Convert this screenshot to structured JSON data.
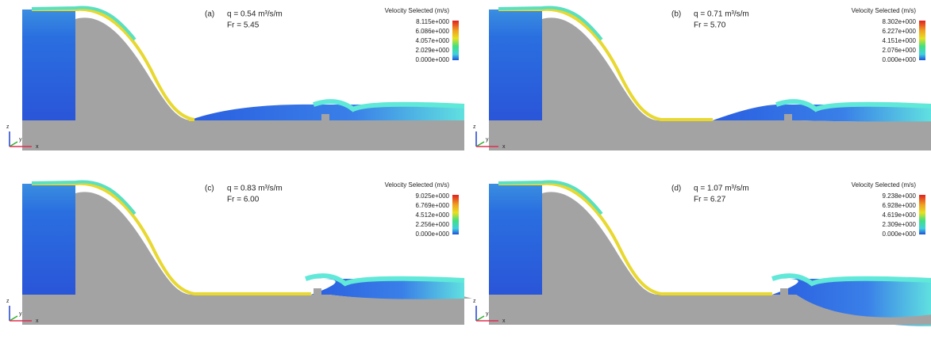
{
  "panels": [
    {
      "label": "(a)",
      "q": "q = 0.54 m³/s/m",
      "fr": "Fr = 5.45",
      "legend": {
        "title": "Velocity Selected (m/s)",
        "ticks": [
          "8.115e+000",
          "6.086e+000",
          "4.057e+000",
          "2.029e+000",
          "0.000e+000"
        ]
      }
    },
    {
      "label": "(b)",
      "q": "q = 0.71 m³/s/m",
      "fr": "Fr = 5.70",
      "legend": {
        "title": "Velocity Selected (m/s)",
        "ticks": [
          "8.302e+000",
          "6.227e+000",
          "4.151e+000",
          "2.076e+000",
          "0.000e+000"
        ]
      }
    },
    {
      "label": "(c)",
      "q": "q = 0.83 m³/s/m",
      "fr": "Fr = 6.00",
      "legend": {
        "title": "Velocity Selected (m/s)",
        "ticks": [
          "9.025e+000",
          "6.769e+000",
          "4.512e+000",
          "2.256e+000",
          "0.000e+000"
        ]
      }
    },
    {
      "label": "(d)",
      "q": "q = 1.07 m³/s/m",
      "fr": "Fr = 6.27",
      "legend": {
        "title": "Velocity Selected (m/s)",
        "ticks": [
          "9.238e+000",
          "6.928e+000",
          "4.619e+000",
          "2.309e+000",
          "0.000e+000"
        ]
      }
    }
  ],
  "axis_labels": {
    "z": "z",
    "y": "y",
    "x": "x"
  }
}
